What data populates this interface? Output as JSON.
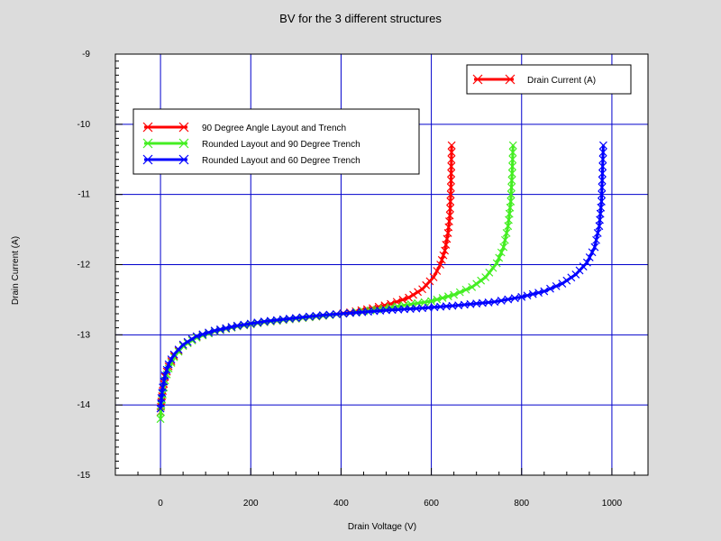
{
  "chart_data": {
    "type": "line",
    "title": "BV for the 3 different structures",
    "xlabel": "Drain Voltage (V)",
    "ylabel": "Drain Current (A)",
    "xlim": [
      -100,
      1080
    ],
    "ylim": [
      -15,
      -9
    ],
    "x_ticks": [
      0,
      200,
      400,
      600,
      800,
      1000
    ],
    "x_tick_labels": [
      "0",
      "200",
      "400",
      "600",
      "800",
      "1000"
    ],
    "y_ticks": [
      -15,
      -14,
      -13,
      -12,
      -11,
      -10,
      -9
    ],
    "y_tick_labels": [
      "-15",
      "-14",
      "-13",
      "-12",
      "-11",
      "-10",
      "-9"
    ],
    "grid": true,
    "log_scale": false,
    "marker": "x",
    "colors": {
      "plot_background": "#ffffff",
      "figure_background": "#dcdcdc",
      "grid": "#0000cc"
    },
    "legend_main": {
      "placement": "top-right",
      "entries": [
        {
          "label": "Drain Current (A)",
          "color": "#ff0000"
        }
      ]
    },
    "legend_series": {
      "placement": "top-left",
      "entries": [
        {
          "label": "90 Degree Angle Layout and Trench",
          "color": "#ff0000"
        },
        {
          "label": "Rounded Layout and 90 Degree Trench",
          "color": "#44ee22"
        },
        {
          "label": "Rounded Layout and 60 Degree Trench",
          "color": "#0000ff"
        }
      ]
    },
    "series": [
      {
        "name": "90 Degree Angle Layout and Trench",
        "color": "#ff0000",
        "points": [
          [
            0,
            -14.1
          ],
          [
            2,
            -13.95
          ],
          [
            5,
            -13.8
          ],
          [
            10,
            -13.6
          ],
          [
            18,
            -13.45
          ],
          [
            30,
            -13.3
          ],
          [
            50,
            -13.15
          ],
          [
            80,
            -13.03
          ],
          [
            120,
            -12.95
          ],
          [
            170,
            -12.88
          ],
          [
            230,
            -12.82
          ],
          [
            300,
            -12.77
          ],
          [
            360,
            -12.73
          ],
          [
            420,
            -12.68
          ],
          [
            470,
            -12.62
          ],
          [
            510,
            -12.56
          ],
          [
            550,
            -12.47
          ],
          [
            580,
            -12.35
          ],
          [
            605,
            -12.18
          ],
          [
            620,
            -12.0
          ],
          [
            630,
            -11.8
          ],
          [
            637,
            -11.55
          ],
          [
            641,
            -11.3
          ],
          [
            643,
            -11.0
          ],
          [
            644,
            -10.7
          ],
          [
            645,
            -10.3
          ]
        ]
      },
      {
        "name": "Rounded Layout and 90 Degree Trench",
        "color": "#44ee22",
        "points": [
          [
            0,
            -14.2
          ],
          [
            2,
            -14.0
          ],
          [
            5,
            -13.85
          ],
          [
            10,
            -13.65
          ],
          [
            18,
            -13.48
          ],
          [
            30,
            -13.32
          ],
          [
            50,
            -13.16
          ],
          [
            80,
            -13.04
          ],
          [
            120,
            -12.95
          ],
          [
            170,
            -12.88
          ],
          [
            230,
            -12.82
          ],
          [
            300,
            -12.77
          ],
          [
            360,
            -12.73
          ],
          [
            420,
            -12.69
          ],
          [
            480,
            -12.64
          ],
          [
            540,
            -12.58
          ],
          [
            600,
            -12.52
          ],
          [
            650,
            -12.43
          ],
          [
            690,
            -12.32
          ],
          [
            720,
            -12.18
          ],
          [
            745,
            -11.98
          ],
          [
            760,
            -11.75
          ],
          [
            770,
            -11.45
          ],
          [
            776,
            -11.1
          ],
          [
            779,
            -10.7
          ],
          [
            781,
            -10.3
          ]
        ]
      },
      {
        "name": "Rounded Layout and 60 Degree Trench",
        "color": "#0000ff",
        "points": [
          [
            0,
            -14.05
          ],
          [
            2,
            -13.9
          ],
          [
            5,
            -13.75
          ],
          [
            10,
            -13.58
          ],
          [
            18,
            -13.42
          ],
          [
            30,
            -13.28
          ],
          [
            50,
            -13.14
          ],
          [
            80,
            -13.02
          ],
          [
            120,
            -12.94
          ],
          [
            170,
            -12.87
          ],
          [
            230,
            -12.81
          ],
          [
            300,
            -12.76
          ],
          [
            360,
            -12.72
          ],
          [
            420,
            -12.69
          ],
          [
            500,
            -12.65
          ],
          [
            580,
            -12.62
          ],
          [
            660,
            -12.58
          ],
          [
            740,
            -12.53
          ],
          [
            800,
            -12.46
          ],
          [
            850,
            -12.38
          ],
          [
            890,
            -12.27
          ],
          [
            920,
            -12.14
          ],
          [
            945,
            -11.97
          ],
          [
            962,
            -11.75
          ],
          [
            972,
            -11.45
          ],
          [
            977,
            -11.1
          ],
          [
            979,
            -10.7
          ],
          [
            981,
            -10.3
          ]
        ]
      }
    ]
  }
}
